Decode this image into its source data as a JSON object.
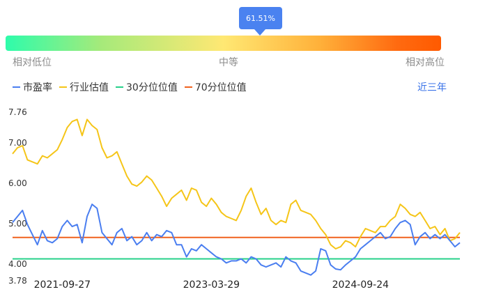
{
  "indicator": {
    "percentile_label": "61.51%",
    "percentile": 0.6151,
    "scale_labels": {
      "low": "相对低位",
      "mid": "中等",
      "high": "相对高位"
    }
  },
  "range_link": "近三年",
  "chart_data": {
    "type": "line",
    "title": "",
    "xlabel": "",
    "ylabel": "",
    "ylim": [
      3.78,
      7.76
    ],
    "y_ticks": [
      "7.76",
      "7.00",
      "6.00",
      "5.00",
      "4.00",
      "3.78"
    ],
    "y_tick_values": [
      7.76,
      7.0,
      6.0,
      5.0,
      4.0,
      3.78
    ],
    "x_ticks": [
      "2021-09-27",
      "2023-03-29",
      "2024-09-24"
    ],
    "x_tick_positions": [
      10,
      40,
      70
    ],
    "x_range": [
      0,
      90
    ],
    "legend_position": "top-left",
    "series": [
      {
        "name": "市盈率",
        "color": "#4a7ef0",
        "x": [
          0,
          1,
          2,
          3,
          4,
          5,
          6,
          7,
          8,
          9,
          10,
          11,
          12,
          13,
          14,
          15,
          16,
          17,
          18,
          19,
          20,
          21,
          22,
          23,
          24,
          25,
          26,
          27,
          28,
          29,
          30,
          31,
          32,
          33,
          34,
          35,
          36,
          37,
          38,
          39,
          40,
          41,
          42,
          43,
          44,
          45,
          46,
          47,
          48,
          49,
          50,
          51,
          52,
          53,
          54,
          55,
          56,
          57,
          58,
          59,
          60,
          61,
          62,
          63,
          64,
          65,
          66,
          67,
          68,
          69,
          70,
          71,
          72,
          73,
          74,
          75,
          76,
          77,
          78,
          79,
          80,
          81,
          82,
          83,
          84,
          85,
          86,
          87,
          88,
          89,
          90
        ],
        "values": [
          5.15,
          5.3,
          5.45,
          5.1,
          4.85,
          4.6,
          4.95,
          4.7,
          4.65,
          4.75,
          5.05,
          5.2,
          5.05,
          5.1,
          4.65,
          5.3,
          5.6,
          5.5,
          4.9,
          4.75,
          4.6,
          4.9,
          5.0,
          4.7,
          4.8,
          4.6,
          4.7,
          4.9,
          4.7,
          4.85,
          4.8,
          4.95,
          4.9,
          4.6,
          4.6,
          4.3,
          4.5,
          4.45,
          4.6,
          4.5,
          4.4,
          4.3,
          4.25,
          4.15,
          4.2,
          4.2,
          4.25,
          4.15,
          4.3,
          4.25,
          4.1,
          4.05,
          4.1,
          4.15,
          4.05,
          4.3,
          4.2,
          4.15,
          3.95,
          3.9,
          3.85,
          3.95,
          4.5,
          4.45,
          4.1,
          4.0,
          3.98,
          4.1,
          4.2,
          4.3,
          4.5,
          4.6,
          4.7,
          4.8,
          4.9,
          4.75,
          4.8,
          5.0,
          5.15,
          5.2,
          5.1,
          4.6,
          4.8,
          4.9,
          4.75,
          4.85,
          4.75,
          4.85,
          4.7,
          4.55,
          4.65
        ]
      },
      {
        "name": "行业估值",
        "color": "#f5c518",
        "x": [
          0,
          1,
          2,
          3,
          4,
          5,
          6,
          7,
          8,
          9,
          10,
          11,
          12,
          13,
          14,
          15,
          16,
          17,
          18,
          19,
          20,
          21,
          22,
          23,
          24,
          25,
          26,
          27,
          28,
          29,
          30,
          31,
          32,
          33,
          34,
          35,
          36,
          37,
          38,
          39,
          40,
          41,
          42,
          43,
          44,
          45,
          46,
          47,
          48,
          49,
          50,
          51,
          52,
          53,
          54,
          55,
          56,
          57,
          58,
          59,
          60,
          61,
          62,
          63,
          64,
          65,
          66,
          67,
          68,
          69,
          70,
          71,
          72,
          73,
          74,
          75,
          76,
          77,
          78,
          79,
          80,
          81,
          82,
          83,
          84,
          85,
          86,
          87,
          88,
          89,
          90
        ],
        "values": [
          6.85,
          7.0,
          7.05,
          6.7,
          6.65,
          6.6,
          6.8,
          6.75,
          6.85,
          6.95,
          7.2,
          7.5,
          7.65,
          7.7,
          7.3,
          7.7,
          7.55,
          7.45,
          7.0,
          6.75,
          6.8,
          6.9,
          6.6,
          6.3,
          6.1,
          6.05,
          6.15,
          6.3,
          6.2,
          6.0,
          5.8,
          5.55,
          5.75,
          5.85,
          5.95,
          5.7,
          6.0,
          5.95,
          5.65,
          5.55,
          5.75,
          5.6,
          5.4,
          5.3,
          5.25,
          5.2,
          5.45,
          5.8,
          6.0,
          5.65,
          5.35,
          5.5,
          5.2,
          5.1,
          5.2,
          5.15,
          5.6,
          5.7,
          5.45,
          5.4,
          5.35,
          5.2,
          5.0,
          4.85,
          4.6,
          4.5,
          4.55,
          4.7,
          4.65,
          4.55,
          4.8,
          5.0,
          4.95,
          4.9,
          5.05,
          5.05,
          5.2,
          5.3,
          5.6,
          5.5,
          5.35,
          5.3,
          5.4,
          5.2,
          5.0,
          5.05,
          4.85,
          5.0,
          4.7,
          4.75,
          4.9
        ]
      },
      {
        "name": "30分位位值",
        "color": "#27d08a",
        "x": [
          0,
          90
        ],
        "values": [
          4.25,
          4.25
        ]
      },
      {
        "name": "70分位位值",
        "color": "#f0621e",
        "x": [
          0,
          90
        ],
        "values": [
          4.78,
          4.78
        ]
      }
    ]
  }
}
